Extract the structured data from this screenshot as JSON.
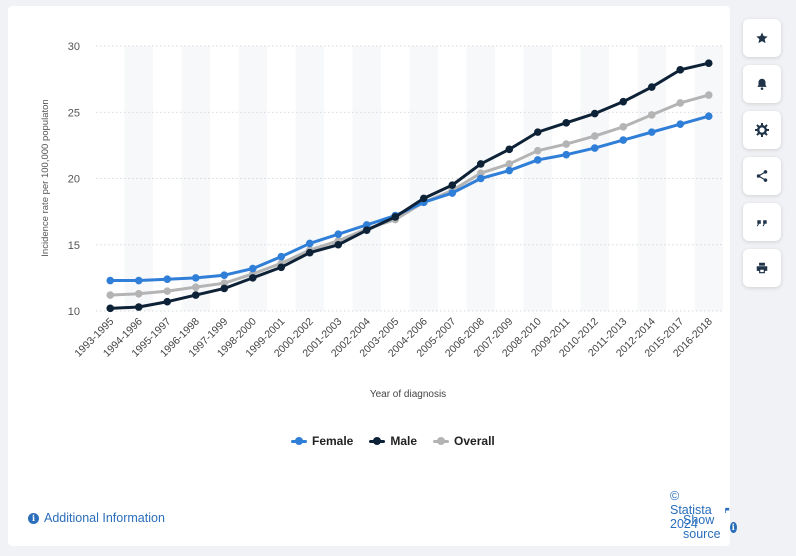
{
  "chart_data": {
    "type": "line",
    "ylabel": "Incidence rate per 100,000 populaton",
    "xlabel": "Year of diagnosis",
    "ylim": [
      10,
      30
    ],
    "yticks": [
      10,
      15,
      20,
      25,
      30
    ],
    "grid": true,
    "legend_position": "bottom",
    "categories": [
      "1993-1995",
      "1994-1996",
      "1995-1997",
      "1996-1998",
      "1997-1999",
      "1998-2000",
      "1999-2001",
      "2000-2002",
      "2001-2003",
      "2002-2004",
      "2003-2005",
      "2004-2006",
      "2005-2007",
      "2006-2008",
      "2007-2009",
      "2008-2010",
      "2009-2011",
      "2010-2012",
      "2011-2013",
      "2012-2014",
      "2015-2017",
      "2016-2018"
    ],
    "series": [
      {
        "name": "Female",
        "color": "#2f7ed8",
        "values": [
          12.3,
          12.3,
          12.4,
          12.5,
          12.7,
          13.2,
          14.1,
          15.1,
          15.8,
          16.5,
          17.2,
          18.2,
          18.9,
          20.0,
          20.6,
          21.4,
          21.8,
          22.3,
          22.9,
          23.5,
          24.1,
          24.7
        ]
      },
      {
        "name": "Male",
        "color": "#0d2137",
        "values": [
          10.2,
          10.3,
          10.7,
          11.2,
          11.7,
          12.5,
          13.3,
          14.4,
          15.0,
          16.1,
          17.1,
          18.5,
          19.5,
          21.1,
          22.2,
          23.5,
          24.2,
          24.9,
          25.8,
          26.9,
          28.2,
          28.7
        ]
      },
      {
        "name": "Overall",
        "color": "#b4b4b4",
        "values": [
          11.2,
          11.3,
          11.5,
          11.8,
          12.1,
          12.8,
          13.6,
          14.6,
          15.3,
          16.2,
          16.9,
          18.2,
          19.1,
          20.4,
          21.1,
          22.1,
          22.6,
          23.2,
          23.9,
          24.8,
          25.7,
          26.3
        ]
      }
    ]
  },
  "sidebar": {
    "buttons": [
      {
        "name": "star-icon",
        "glyph": "star"
      },
      {
        "name": "bell-icon",
        "glyph": "bell"
      },
      {
        "name": "gear-icon",
        "glyph": "gear"
      },
      {
        "name": "share-icon",
        "glyph": "share"
      },
      {
        "name": "quote-icon",
        "glyph": "quote"
      },
      {
        "name": "print-icon",
        "glyph": "print"
      }
    ]
  },
  "footer": {
    "copyright": "© Statista 2024",
    "additional_info": "Additional Information",
    "show_source": "Show source",
    "info_glyph": "i"
  }
}
